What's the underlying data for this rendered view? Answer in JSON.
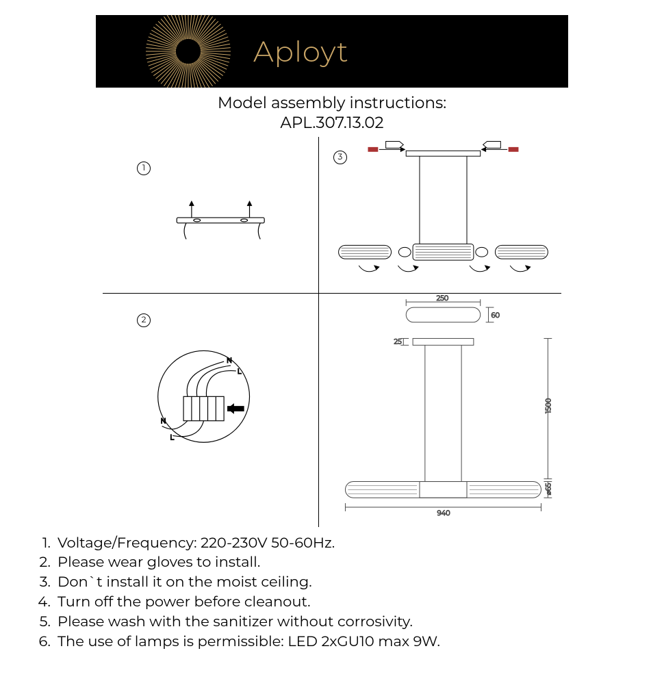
{
  "banner": {
    "brand": "Aployt",
    "background": "#000000",
    "accent": "#caa667"
  },
  "title": {
    "line1": "Model assembly instructions:",
    "line2": "APL.307.13.02"
  },
  "steps": {
    "s1": "1",
    "s2": "2",
    "s3": "3"
  },
  "dimensions": {
    "plate_w": "250",
    "plate_h": "60",
    "mount_h": "25",
    "drop_h": "1500",
    "body_dia": "⌀65",
    "total_w": "940"
  },
  "instructions": {
    "i1": "Voltage/Frequency: 220-230V 50-60Hz.",
    "i2": "Please wear gloves to install.",
    "i3": "Don`t install it on the moist ceiling.",
    "i4": "Turn off the power before cleanout.",
    "i5": "Please wash with the sanitizer without corrosivity.",
    "i6": "The use of lamps is permissible: LED 2xGU10 max 9W.",
    "n1": "1.",
    "n2": "2.",
    "n3": "3.",
    "n4": "4.",
    "n5": "5.",
    "n6": "6."
  }
}
